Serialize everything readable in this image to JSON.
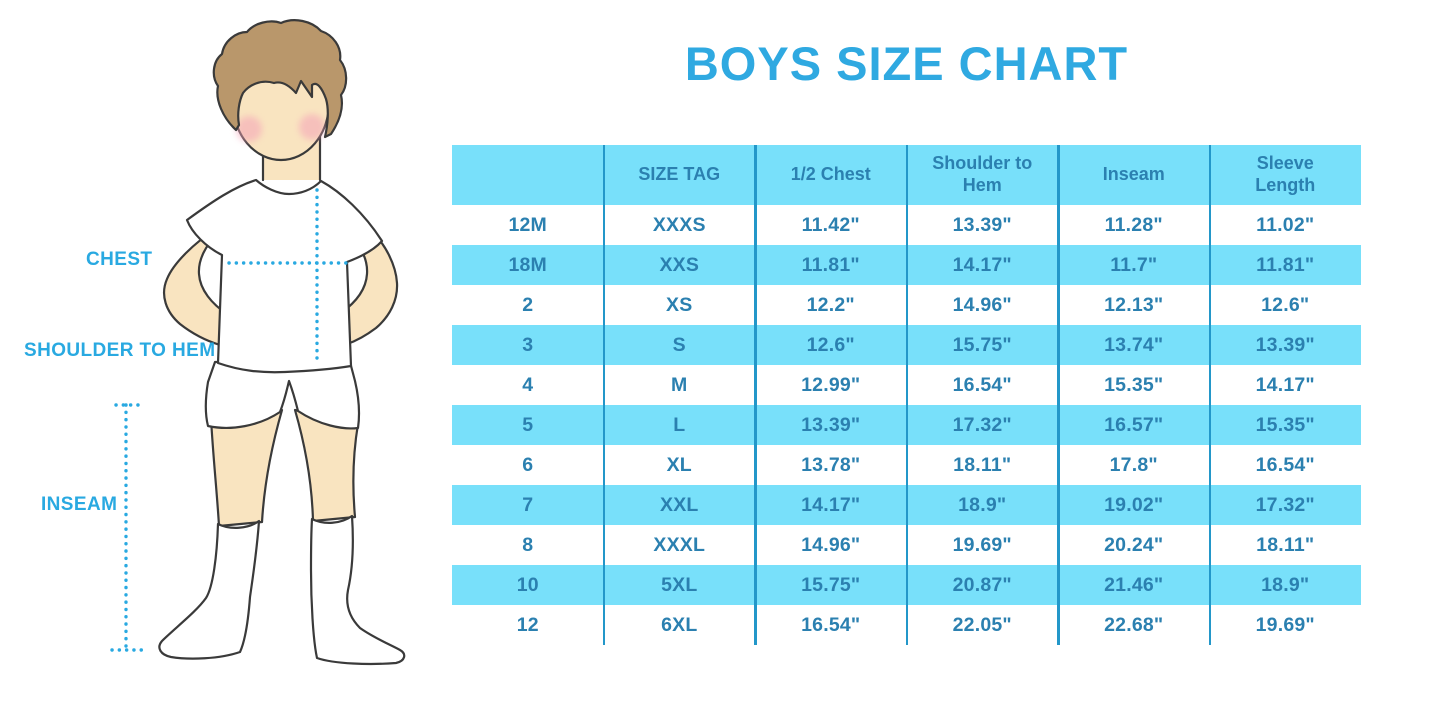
{
  "title": "BOYS SIZE CHART",
  "figure_labels": {
    "chest": "CHEST",
    "shoulder_to_hem": "SHOULDER TO HEM",
    "inseam": "INSEAM"
  },
  "chart_data": {
    "type": "table",
    "title": "BOYS SIZE CHART",
    "columns": [
      "",
      "SIZE TAG",
      "1/2 Chest",
      "Shoulder to Hem",
      "Inseam",
      "Sleeve Length"
    ],
    "rows": [
      [
        "12M",
        "XXXS",
        "11.42\"",
        "13.39\"",
        "11.28\"",
        "11.02\""
      ],
      [
        "18M",
        "XXS",
        "11.81\"",
        "14.17\"",
        "11.7\"",
        "11.81\""
      ],
      [
        "2",
        "XS",
        "12.2\"",
        "14.96\"",
        "12.13\"",
        "12.6\""
      ],
      [
        "3",
        "S",
        "12.6\"",
        "15.75\"",
        "13.74\"",
        "13.39\""
      ],
      [
        "4",
        "M",
        "12.99\"",
        "16.54\"",
        "15.35\"",
        "14.17\""
      ],
      [
        "5",
        "L",
        "13.39\"",
        "17.32\"",
        "16.57\"",
        "15.35\""
      ],
      [
        "6",
        "XL",
        "13.78\"",
        "18.11\"",
        "17.8\"",
        "16.54\""
      ],
      [
        "7",
        "XXL",
        "14.17\"",
        "18.9\"",
        "19.02\"",
        "17.32\""
      ],
      [
        "8",
        "XXXL",
        "14.96\"",
        "19.69\"",
        "20.24\"",
        "18.11\""
      ],
      [
        "10",
        "5XL",
        "15.75\"",
        "20.87\"",
        "21.46\"",
        "18.9\""
      ],
      [
        "12",
        "6XL",
        "16.54\"",
        "22.05\"",
        "22.68\"",
        "19.69\""
      ]
    ],
    "row_highlight_pattern": "header and every second data row (18M, 3, 5, 7, 10) filled light cyan; others white",
    "grid": "vertical column separator lines only, no outer border",
    "legend_position": "none"
  },
  "colors": {
    "title_blue": "#2FA9E1",
    "label_blue": "#29A9E1",
    "table_text_blue": "#2B80B0",
    "row_highlight_cyan": "#78E0FA",
    "column_separator_blue": "#2397C9",
    "dotted_line_blue": "#29A9E1",
    "skin": "#F9E4C0",
    "hair_brown": "#B9976B",
    "outline": "#3A3A3A"
  }
}
